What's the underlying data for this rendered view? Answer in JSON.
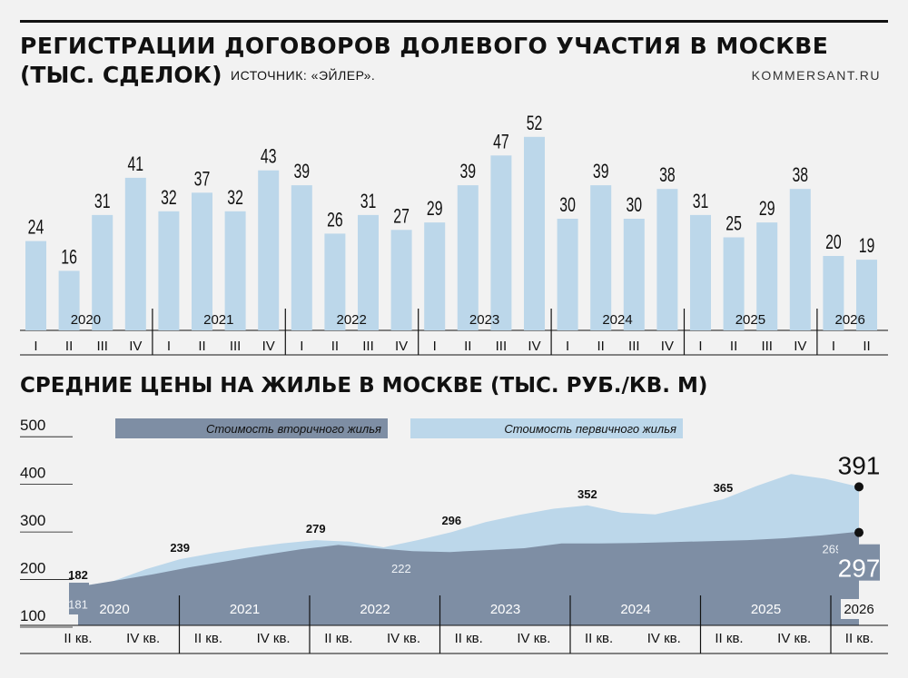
{
  "header": {
    "title_line1": "РЕГИСТРАЦИИ ДОГОВОРОВ ДОЛЕВОГО УЧАСТИЯ В МОСКВЕ",
    "title_line2": "(ТЫС. СДЕЛОК)",
    "source": "ИСТОЧНИК: «ЭЙЛЕР».",
    "brand": "KOMMERSANT.RU"
  },
  "section2": {
    "title": "СРЕДНИЕ ЦЕНЫ НА ЖИЛЬЕ В МОСКВЕ (ТЫС. РУБ./КВ. М)"
  },
  "colors": {
    "bar": "#bcd7ea",
    "primary_area": "#bcd7ea",
    "secondary_area": "#7e8ea4",
    "text": "#111111"
  },
  "chart_data": [
    {
      "type": "bar",
      "title": "РЕГИСТРАЦИИ ДОГОВОРОВ ДОЛЕВОГО УЧАСТИЯ В МОСКВЕ (ТЫС. СДЕЛОК)",
      "years": [
        "2020",
        "2021",
        "2022",
        "2023",
        "2024",
        "2025",
        "2026"
      ],
      "categories": [
        "I",
        "II",
        "III",
        "IV",
        "I",
        "II",
        "III",
        "IV",
        "I",
        "II",
        "III",
        "IV",
        "I",
        "II",
        "III",
        "IV",
        "I",
        "II",
        "III",
        "IV",
        "I",
        "II",
        "III",
        "IV",
        "I",
        "II"
      ],
      "values": [
        24,
        16,
        31,
        41,
        32,
        37,
        32,
        43,
        39,
        26,
        31,
        27,
        29,
        39,
        47,
        52,
        30,
        39,
        30,
        38,
        31,
        25,
        29,
        38,
        20,
        19
      ],
      "ylim": [
        0,
        52
      ]
    },
    {
      "type": "area",
      "title": "СРЕДНИЕ ЦЕНЫ НА ЖИЛЬЕ В МОСКВЕ (ТЫС. РУБ./КВ. М)",
      "legend_position": "top",
      "years": [
        "2020",
        "2021",
        "2022",
        "2023",
        "2024",
        "2025",
        "2026"
      ],
      "x_ticks": [
        "II кв.",
        "IV кв.",
        "II кв.",
        "IV кв.",
        "II кв.",
        "IV кв.",
        "II кв.",
        "IV кв.",
        "II кв.",
        "IV кв.",
        "II кв.",
        "IV кв.",
        "II кв."
      ],
      "y_ticks": [
        "100",
        "200",
        "300",
        "400",
        "500"
      ],
      "ylim": [
        100,
        500
      ],
      "series": [
        {
          "name": "Стоимость вторичного жилья",
          "values": [
            181,
            194,
            207,
            222,
            235,
            248,
            260,
            269,
            262,
            256,
            254,
            258,
            262,
            272,
            272,
            273,
            275,
            277,
            279,
            283,
            289,
            297
          ]
        },
        {
          "name": "Стоимость первичного жилья",
          "values": [
            182,
            192,
            218,
            239,
            252,
            263,
            272,
            279,
            276,
            264,
            279,
            296,
            317,
            332,
            345,
            352,
            337,
            333,
            349,
            365,
            393,
            418,
            408,
            391
          ]
        }
      ],
      "point_labels": {
        "secondary": [
          [
            "181",
            0
          ],
          [
            "222",
            3
          ],
          [
            "269",
            7
          ],
          [
            "254",
            10
          ],
          [
            "272",
            14
          ],
          [
            "277",
            17
          ]
        ],
        "primary": [
          [
            "182",
            0
          ],
          [
            "239",
            3
          ],
          [
            "279",
            7
          ],
          [
            "296",
            11
          ],
          [
            "352",
            15
          ],
          [
            "365",
            19
          ]
        ]
      },
      "end_values": {
        "primary": "391",
        "secondary": "297"
      }
    }
  ]
}
